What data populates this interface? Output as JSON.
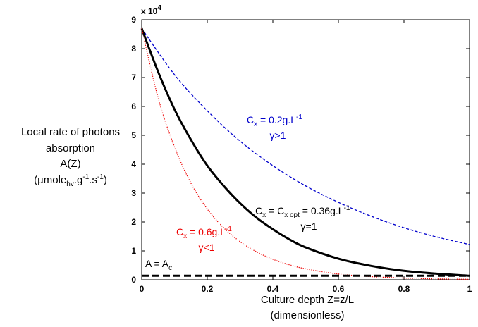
{
  "chart_data": {
    "type": "line",
    "ylabel": {
      "line1": "Local rate of photons",
      "line2": "absorption",
      "line3": "A(Z)",
      "line4_main": "(µmole",
      "line4_sub": "hv",
      "line4_mid": ".g",
      "line4_sup1": "-1",
      "line4_mid2": ".s",
      "line4_sup2": "-1",
      "line4_end": ")"
    },
    "xlabel": {
      "line1": "Culture depth Z=z/L",
      "line2": "(dimensionless)"
    },
    "exponent_label": "x 10",
    "exponent_power": "4",
    "xlim": [
      0,
      1
    ],
    "ylim": [
      0,
      90000
    ],
    "x_ticks": [
      "0",
      "0.2",
      "0.4",
      "0.6",
      "0.8",
      "1"
    ],
    "y_ticks": [
      "0",
      "1",
      "2",
      "3",
      "4",
      "5",
      "6",
      "7",
      "8",
      "9"
    ],
    "series": [
      {
        "style": "dashed",
        "color": "#0000cc",
        "x": [
          0,
          0.1,
          0.2,
          0.3,
          0.4,
          0.5,
          0.6,
          0.7,
          0.8,
          0.9,
          1.0
        ],
        "y": [
          87000,
          71000,
          58500,
          48000,
          39500,
          32500,
          26800,
          22000,
          18000,
          14800,
          12200
        ]
      },
      {
        "style": "solid",
        "color": "#000000",
        "x": [
          0,
          0.05,
          0.1,
          0.15,
          0.2,
          0.25,
          0.3,
          0.35,
          0.4,
          0.45,
          0.5,
          0.6,
          0.7,
          0.8,
          0.9,
          1.0
        ],
        "y": [
          87000,
          72000,
          59000,
          48500,
          39500,
          32500,
          26500,
          21500,
          17500,
          14000,
          11200,
          7300,
          4800,
          3100,
          2100,
          1400
        ]
      },
      {
        "style": "dotted",
        "color": "#ee0000",
        "x": [
          0,
          0.05,
          0.1,
          0.15,
          0.2,
          0.25,
          0.3,
          0.35,
          0.4,
          0.45,
          0.5,
          0.6,
          0.7,
          0.8,
          0.9,
          1.0
        ],
        "y": [
          87000,
          63000,
          46000,
          33500,
          24500,
          18000,
          13200,
          9700,
          7100,
          5200,
          3800,
          2000,
          1100,
          600,
          300,
          150
        ]
      },
      {
        "style": "thick-dashed",
        "color": "#000000",
        "x": [
          0,
          1
        ],
        "y": [
          1400,
          1400
        ]
      }
    ],
    "annotations": {
      "blue": {
        "pre": "C",
        "sub": "x",
        "mid": " = 0.2g.L",
        "sup": "-1",
        "line2": "γ>1",
        "color": "#0000cc"
      },
      "black": {
        "pre": "C",
        "sub": "x",
        "mid": " = C",
        "sub2": "x opt",
        "mid2": " = 0.36g.L",
        "sup": "-1",
        "line2": "γ=1",
        "color": "#000000"
      },
      "red": {
        "pre": "C",
        "sub": "x",
        "mid": " = 0.6g.L",
        "sup": "-1",
        "line2": "γ<1",
        "color": "#ee0000"
      },
      "threshold": {
        "pre": "A = A",
        "sub": "c",
        "color": "#000000"
      }
    }
  }
}
